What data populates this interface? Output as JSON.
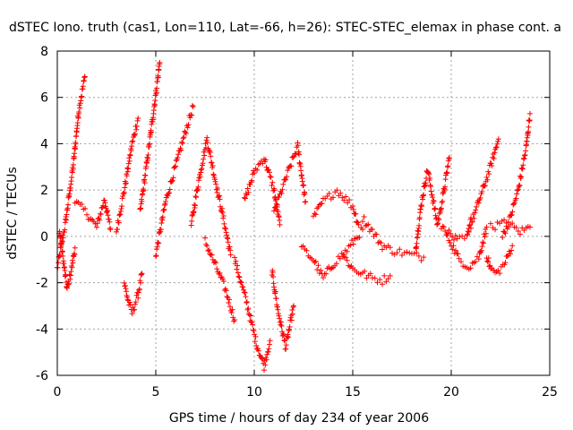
{
  "chart_data": {
    "type": "scatter",
    "title": "dSTEC Iono. truth (cas1, Lon=110, Lat=-66, h=26): STEC-STEC_elemax in phase cont. a",
    "xlabel": "GPS time / hours of day 234 of year 2006",
    "ylabel": "dSTEC  / TECUs",
    "xlim": [
      0,
      25
    ],
    "ylim": [
      -6,
      8
    ],
    "grid": true,
    "marker": "+",
    "x_ticks": [
      0,
      5,
      10,
      15,
      20,
      25
    ],
    "y_ticks": [
      -6,
      -4,
      -2,
      0,
      2,
      4,
      6,
      8
    ],
    "x_tick_labels": [
      "0",
      "5",
      "10",
      "15",
      "20",
      "25"
    ],
    "y_tick_labels": [
      "-6",
      "-4",
      "-2",
      "0",
      "2",
      "4",
      "6",
      "8"
    ],
    "series": [
      {
        "name": "dSTEC",
        "color": "#ff0000",
        "note": "Dense scatter of several thousand '+' markers; represented by approximate traces of per-satellite arcs.",
        "arcs": [
          {
            "x": [
              0.0,
              0.4,
              0.8,
              1.1,
              1.4
            ],
            "y": [
              -1.4,
              0.5,
              3.0,
              5.5,
              6.9
            ]
          },
          {
            "x": [
              0.1,
              0.3,
              0.5,
              0.7,
              0.9
            ],
            "y": [
              0.3,
              -1.0,
              -2.3,
              -1.5,
              -0.5
            ]
          },
          {
            "x": [
              0.9,
              1.5,
              2.0,
              2.4,
              2.7
            ],
            "y": [
              1.5,
              1.0,
              0.4,
              1.6,
              0.3
            ]
          },
          {
            "x": [
              3.0,
              3.4,
              3.8,
              4.1
            ],
            "y": [
              0.2,
              2.0,
              4.0,
              5.1
            ]
          },
          {
            "x": [
              3.4,
              3.6,
              3.8,
              4.1,
              4.3
            ],
            "y": [
              -2.0,
              -2.8,
              -3.3,
              -2.5,
              -1.6
            ]
          },
          {
            "x": [
              4.2,
              4.6,
              4.9,
              5.1,
              5.2
            ],
            "y": [
              1.0,
              3.5,
              5.5,
              6.8,
              7.5
            ]
          },
          {
            "x": [
              5.0,
              5.5,
              6.0,
              6.5,
              6.9
            ],
            "y": [
              -0.8,
              1.5,
              3.0,
              4.5,
              5.6
            ]
          },
          {
            "x": [
              6.8,
              7.2,
              7.6,
              8.0,
              8.5,
              8.8
            ],
            "y": [
              0.5,
              2.5,
              4.2,
              2.5,
              0.5,
              -0.8
            ]
          },
          {
            "x": [
              7.5,
              8.0,
              8.5,
              9.0
            ],
            "y": [
              -0.2,
              -1.2,
              -2.2,
              -3.6
            ]
          },
          {
            "x": [
              9.0,
              9.6,
              10.1,
              10.5,
              10.8
            ],
            "y": [
              -1.0,
              -2.8,
              -4.6,
              -5.6,
              -4.5
            ]
          },
          {
            "x": [
              9.5,
              10.0,
              10.5,
              11.0,
              11.3
            ],
            "y": [
              1.5,
              2.8,
              3.4,
              2.0,
              0.5
            ]
          },
          {
            "x": [
              10.9,
              11.2,
              11.6,
              12.0
            ],
            "y": [
              -1.5,
              -3.2,
              -4.8,
              -3.0
            ]
          },
          {
            "x": [
              11.0,
              11.6,
              12.2,
              12.6
            ],
            "y": [
              1.0,
              2.5,
              3.9,
              1.5
            ]
          },
          {
            "x": [
              12.4,
              13.0,
              13.5,
              14.0,
              14.8,
              15.5
            ],
            "y": [
              -0.5,
              -1.0,
              -1.8,
              -1.2,
              -0.5,
              0.3
            ]
          },
          {
            "x": [
              13.0,
              13.5,
              14.2,
              15.0,
              15.3
            ],
            "y": [
              0.8,
              1.5,
              2.0,
              1.3,
              0.5
            ]
          },
          {
            "x": [
              14.5,
              15.0,
              15.5,
              16.0,
              16.5,
              16.9
            ],
            "y": [
              -0.8,
              -1.4,
              -1.6,
              -1.8,
              -1.9,
              -1.7
            ]
          },
          {
            "x": [
              15.5,
              16.0,
              16.5,
              17.0,
              18.0,
              18.6
            ],
            "y": [
              0.8,
              0.2,
              -0.4,
              -0.6,
              -0.8,
              -0.9
            ]
          },
          {
            "x": [
              18.2,
              18.5,
              18.8,
              19.3,
              19.6,
              19.9
            ],
            "y": [
              -0.5,
              1.5,
              2.9,
              0.5,
              1.8,
              3.4
            ]
          },
          {
            "x": [
              19.5,
              20.0,
              20.4,
              20.9,
              21.4,
              21.8
            ],
            "y": [
              0.5,
              -0.3,
              -1.0,
              -1.3,
              -0.9,
              0.4
            ]
          },
          {
            "x": [
              19.8,
              20.3,
              20.8,
              21.0
            ],
            "y": [
              0.2,
              -0.2,
              -0.1,
              0.8
            ]
          },
          {
            "x": [
              21.0,
              21.4,
              21.8,
              22.1,
              22.4
            ],
            "y": [
              0.5,
              1.5,
              2.5,
              3.3,
              4.2
            ]
          },
          {
            "x": [
              21.8,
              22.0,
              22.3,
              22.7,
              23.1
            ],
            "y": [
              -0.8,
              -1.4,
              -1.6,
              -1.2,
              -0.4
            ]
          },
          {
            "x": [
              22.6,
              23.0,
              23.4,
              23.8,
              24.0
            ],
            "y": [
              0.0,
              0.8,
              2.0,
              3.8,
              5.3
            ]
          },
          {
            "x": [
              22.0,
              22.8,
              23.5,
              24.0
            ],
            "y": [
              0.4,
              0.6,
              0.2,
              0.4
            ]
          }
        ]
      }
    ]
  }
}
